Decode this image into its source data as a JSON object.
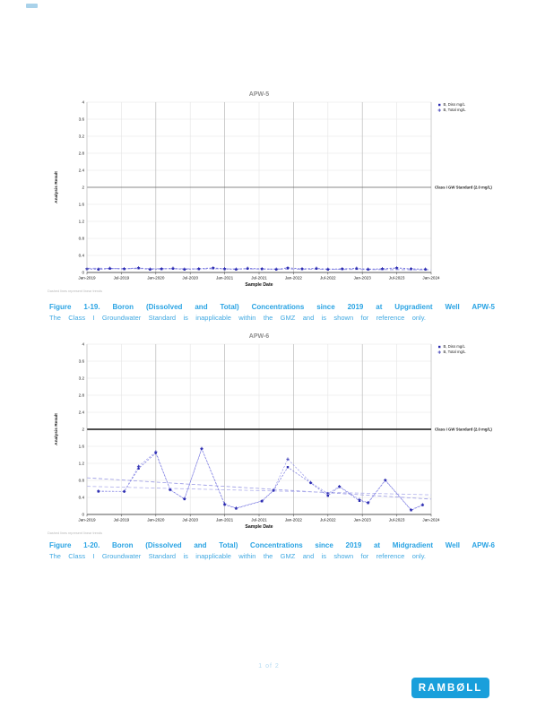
{
  "page": {
    "number_label": "1 of 2",
    "logo_text": "RAMBØLL",
    "logo_color": "#199FDB",
    "caption_color": "#29A3E3"
  },
  "figures": [
    {
      "caption_line1": "Figure 1-19. Boron (Dissolved and Total) Concentrations since 2019 at Upgradient Well APW-5",
      "caption_line2": "The Class I Groundwater Standard is inapplicable within the GMZ and is shown for reference only."
    },
    {
      "caption_line1": "Figure 1-20. Boron (Dissolved and Total) Concentrations since 2019 at Midgradient Well APW-6",
      "caption_line2": "The Class I Groundwater Standard is inapplicable within the GMZ and is shown for reference only."
    }
  ],
  "chart_data": [
    {
      "type": "line",
      "title": "APW-5",
      "xlabel": "Sample Date",
      "ylabel": "Analysis Result",
      "ylim": [
        0,
        4
      ],
      "ytick_step": 0.4,
      "grid": true,
      "legend_position": "top-right-outside",
      "x_range_months": [
        0,
        60
      ],
      "x_ticks": [
        "Jan-2019",
        "Jul-2019",
        "Jan-2020",
        "Jul-2020",
        "Jan-2021",
        "Jul-2021",
        "Jan-2022",
        "Jul-2022",
        "Jan-2023",
        "Jul-2023",
        "Jan-2024"
      ],
      "reference_line": {
        "value": 2,
        "label": "Class I GW Standard (2.0 mg/L)",
        "color": "#666666",
        "width": 0.7
      },
      "footnote": "Dashed lines represent linear trends",
      "series": [
        {
          "name": "B, Diss mg/L",
          "marker": "square",
          "marker_color": "#2B2BB0",
          "line_color": "#6A6ADB",
          "x": [
            0,
            2,
            4,
            6.5,
            9,
            11,
            13,
            15,
            17,
            19.5,
            22,
            24,
            26,
            28,
            30.5,
            33,
            35,
            37.5,
            40,
            42,
            44.5,
            47,
            49,
            51.5,
            54,
            56.5,
            59
          ],
          "y": [
            0.08,
            0.07,
            0.09,
            0.08,
            0.1,
            0.07,
            0.08,
            0.09,
            0.07,
            0.08,
            0.1,
            0.08,
            0.07,
            0.09,
            0.08,
            0.07,
            0.1,
            0.08,
            0.09,
            0.07,
            0.08,
            0.09,
            0.07,
            0.08,
            0.1,
            0.08,
            0.07
          ]
        },
        {
          "name": "B, Total mg/L",
          "marker": "plus",
          "marker_color": "#2B2BB0",
          "line_color": "#9090E8",
          "x": [
            0,
            2,
            4,
            6.5,
            9,
            11,
            13,
            15,
            17,
            19.5,
            22,
            24,
            26,
            28,
            30.5,
            33,
            35,
            37.5,
            40,
            42,
            44.5,
            47,
            49,
            51.5,
            54,
            56.5,
            59
          ],
          "y": [
            0.09,
            0.08,
            0.1,
            0.09,
            0.11,
            0.08,
            0.09,
            0.1,
            0.08,
            0.09,
            0.11,
            0.09,
            0.08,
            0.1,
            0.09,
            0.08,
            0.11,
            0.09,
            0.1,
            0.08,
            0.09,
            0.1,
            0.08,
            0.09,
            0.11,
            0.09,
            0.08
          ]
        }
      ],
      "trend_lines": [
        {
          "x": [
            0,
            60
          ],
          "y": [
            0.1,
            0.06
          ],
          "color": "#9898E4"
        },
        {
          "x": [
            0,
            60
          ],
          "y": [
            0.09,
            0.07
          ],
          "color": "#B0B0EC"
        }
      ]
    },
    {
      "type": "line",
      "title": "APW-6",
      "xlabel": "Sample Date",
      "ylabel": "Analysis Result",
      "ylim": [
        0,
        4
      ],
      "ytick_step": 0.4,
      "grid": true,
      "legend_position": "top-right-outside",
      "x_range_months": [
        0,
        60
      ],
      "x_ticks": [
        "Jan-2019",
        "Jul-2019",
        "Jan-2020",
        "Jul-2020",
        "Jan-2021",
        "Jul-2021",
        "Jan-2022",
        "Jul-2022",
        "Jan-2023",
        "Jul-2023",
        "Jan-2024"
      ],
      "reference_line": {
        "value": 2,
        "label": "Class I GW Standard (2.0 mg/L)",
        "color": "#111111",
        "width": 1.5
      },
      "footnote": "Dashed lines represent linear trends",
      "series": [
        {
          "name": "B, Diss mg/L",
          "marker": "square",
          "marker_color": "#2B2BB0",
          "line_color": "#6A6ADB",
          "x": [
            2,
            6.5,
            9,
            12,
            14.5,
            17,
            20,
            24,
            26,
            30.5,
            32.5,
            35,
            39,
            42,
            44,
            47.5,
            49,
            52,
            56.5,
            58.5
          ],
          "y": [
            0.54,
            0.54,
            1.08,
            1.44,
            0.58,
            0.36,
            1.54,
            0.23,
            0.14,
            0.31,
            0.56,
            1.11,
            0.74,
            0.44,
            0.65,
            0.32,
            0.27,
            0.8,
            0.1,
            0.22
          ]
        },
        {
          "name": "B, Total mg/L",
          "marker": "plus",
          "marker_color": "#2B2BB0",
          "line_color": "#9090E8",
          "x": [
            2,
            6.5,
            9,
            12,
            14.5,
            17,
            20,
            24,
            26,
            30.5,
            32.5,
            35,
            39,
            42,
            44,
            47.5,
            49,
            52,
            56.5,
            58.5
          ],
          "y": [
            0.55,
            0.54,
            1.13,
            1.47,
            0.58,
            0.37,
            1.55,
            0.25,
            0.15,
            0.32,
            0.57,
            1.3,
            0.75,
            0.49,
            0.66,
            0.35,
            0.28,
            0.81,
            0.11,
            0.23
          ]
        }
      ],
      "trend_lines": [
        {
          "x": [
            0,
            60
          ],
          "y": [
            0.86,
            0.36
          ],
          "color": "#9898E4"
        },
        {
          "x": [
            0,
            60
          ],
          "y": [
            0.66,
            0.46
          ],
          "color": "#B0B0EC"
        }
      ]
    }
  ]
}
